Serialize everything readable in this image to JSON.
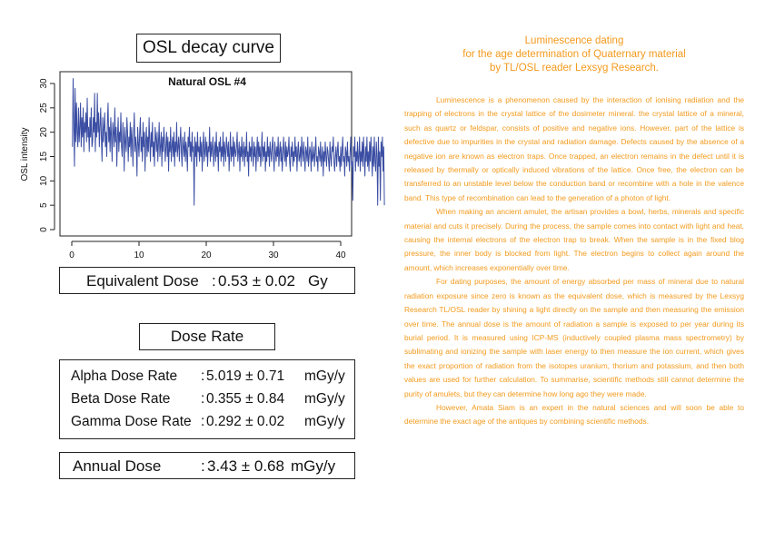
{
  "left": {
    "osl_title": "OSL decay curve",
    "equivalent_dose": {
      "label": "Equivalent Dose",
      "colon": ":",
      "value": "0.53 ± 0.02",
      "unit": "Gy"
    },
    "dose_rate_title": "Dose Rate",
    "dose_rates": [
      {
        "label": "Alpha Dose Rate",
        "colon": ":",
        "value": "5.019 ± 0.71",
        "unit": "mGy/y"
      },
      {
        "label": "Beta Dose Rate",
        "colon": ":",
        "value": "0.355 ± 0.84",
        "unit": "mGy/y"
      },
      {
        "label": "Gamma Dose Rate",
        "colon": ":",
        "value": "0.292 ± 0.02",
        "unit": "mGy/y"
      }
    ],
    "annual_dose": {
      "label": "Annual Dose",
      "colon": ":",
      "value": "3.43 ± 0.68",
      "unit": "mGy/y"
    }
  },
  "chart_data": {
    "type": "line",
    "title": "Natural OSL #4",
    "xlabel": "",
    "ylabel": "OSL intensity",
    "xlim": [
      0,
      40
    ],
    "ylim": [
      0,
      30
    ],
    "xticks": [
      0,
      10,
      20,
      30,
      40
    ],
    "yticks": [
      0,
      5,
      10,
      15,
      20,
      25,
      30
    ],
    "grid": false,
    "series_color": "#3b4ea3",
    "x_step": 0.1,
    "x_start": 0.1,
    "values": [
      17,
      31,
      22,
      13,
      29,
      18,
      26,
      20,
      17,
      25,
      18,
      21,
      26,
      17,
      23,
      19,
      25,
      16,
      22,
      20,
      24,
      18,
      27,
      19,
      21,
      16,
      23,
      19,
      25,
      17,
      18,
      23,
      20,
      28,
      16,
      22,
      19,
      28,
      20,
      24,
      17,
      21,
      25,
      19,
      14,
      23,
      18,
      21,
      24,
      17,
      20,
      15,
      22,
      26,
      18,
      21,
      16,
      23,
      19,
      14,
      22,
      20,
      17,
      25,
      18,
      21,
      13,
      19,
      23,
      16,
      20,
      18,
      24,
      17,
      15,
      22,
      19,
      12,
      21,
      18,
      16,
      23,
      20,
      14,
      19,
      17,
      22,
      15,
      21,
      18,
      13,
      20,
      24,
      16,
      19,
      17,
      11,
      21,
      18,
      15,
      20,
      23,
      16,
      19,
      14,
      22,
      17,
      20,
      12,
      18,
      21,
      15,
      19,
      16,
      23,
      18,
      14,
      20,
      17,
      22,
      15,
      18,
      13,
      21,
      19,
      16,
      20,
      14,
      18,
      22,
      15,
      17,
      20,
      13,
      19,
      16,
      21,
      18,
      14,
      17,
      20,
      15,
      19,
      12,
      18,
      16,
      21,
      14,
      17,
      19,
      15,
      20,
      13,
      18,
      16,
      22,
      15,
      17,
      19,
      14,
      18,
      21,
      16,
      13,
      19,
      17,
      15,
      20,
      14,
      18,
      16,
      12,
      19,
      17,
      21,
      15,
      18,
      14,
      20,
      16,
      17,
      5,
      19,
      15,
      18,
      13,
      20,
      16,
      17,
      14,
      19,
      15,
      18,
      12,
      17,
      20,
      14,
      16,
      19,
      15,
      18,
      13,
      17,
      16,
      21,
      14,
      18,
      15,
      17,
      19,
      13,
      16,
      18,
      14,
      20,
      15,
      17,
      12,
      18,
      16,
      19,
      14,
      17,
      15,
      20,
      13,
      18,
      16,
      14,
      19,
      17,
      15,
      18,
      12,
      16,
      20,
      14,
      17,
      15,
      19,
      13,
      18,
      16,
      15,
      17,
      20,
      14,
      16,
      18,
      12,
      17,
      15,
      19,
      14,
      16,
      18,
      13,
      17,
      15,
      20,
      14,
      16,
      11,
      18,
      15,
      17,
      14,
      19,
      16,
      13,
      18,
      15,
      17,
      12,
      16,
      19,
      14,
      18,
      15,
      17,
      13,
      16,
      20,
      14,
      17,
      15,
      18,
      12,
      16,
      14,
      19,
      15,
      17,
      13,
      18,
      16,
      14,
      17,
      19,
      15,
      12,
      18,
      16,
      14,
      17,
      15,
      19,
      13,
      16,
      18,
      14,
      17,
      12,
      15,
      19,
      16,
      14,
      18,
      13,
      17,
      15,
      16,
      19,
      14,
      12,
      17,
      15,
      18,
      13,
      16,
      14,
      19,
      15,
      17,
      12,
      16,
      18,
      14,
      15,
      17,
      13,
      19,
      16,
      14,
      18,
      15,
      12,
      17,
      16,
      14,
      19,
      13,
      15,
      17,
      16,
      12,
      18,
      14,
      15,
      17,
      13,
      16,
      19,
      14,
      15,
      12,
      17,
      16,
      14,
      18,
      13,
      15,
      17,
      11,
      16,
      14,
      18,
      15,
      13,
      17,
      16,
      14,
      12,
      18,
      15,
      13,
      17,
      16,
      19,
      14,
      12,
      15,
      17,
      13,
      16,
      18,
      14,
      15,
      12,
      17,
      13,
      16,
      19,
      14,
      15,
      11,
      17,
      16,
      13,
      18,
      14,
      15,
      12,
      16,
      19,
      13,
      14,
      6,
      17,
      15,
      19,
      12,
      16,
      14,
      18,
      13,
      15,
      19,
      12,
      16,
      14,
      18,
      13,
      19,
      15,
      11,
      17,
      14,
      19,
      13,
      16,
      12,
      18,
      14,
      19,
      15,
      11,
      17,
      13,
      19,
      14,
      12,
      18,
      15,
      5,
      19,
      13,
      16,
      6,
      18,
      15,
      19,
      12,
      17,
      5
    ]
  },
  "right": {
    "title_lines": [
      "Luminescence dating",
      "for the age determination of Quaternary material",
      "by TL/OSL reader Lexsyg Research."
    ],
    "paragraphs": [
      "Luminescence is a phenomenon caused by the interaction of ionising radiation and the trapping of electrons in the crystal lattice of the dosimeter mineral. the crystal lattice of a mineral, such as quartz or feldspar, consists of positive and negative ions. However, part of the lattice is defective due to impurities in the crystal and radiation damage. Defects caused by the absence of a negative ion are known as electron traps. Once trapped, an electron remains in the defect until it is released by thermally or optically induced vibrations of the lattice. Once free, the electron can be transferred to an unstable level below the conduction band or recombine with a hole in the valence band. This type of recombination can lead to the generation of a photon of light.",
      "When making an ancient amulet, the artisan provides a bowl, herbs, minerals and specific material and cuts it precisely. During the process, the sample comes into contact with light and heat, causing the internal electrons of the electron trap to break. When the sample is in the fixed blog pressure, the inner body is blocked from light. The electron begins to collect again around the amount, which increases exponentially over time.",
      "For dating purposes, the amount of energy absorbed per mass of mineral due to natural radiation exposure since zero is known as the equivalent dose, which is measured by the Lexsyg Research TL/OSL reader by shining a light directly on the sample and then measuring the emission over time. The annual dose is the amount of radiation a sample is exposed to per year during its burial period. It is measured using ICP-MS (inductively coupled plasma mass spectrometry) by sublimating and ionizing the sample with laser energy to then measure the ion current, which gives the exact proportion of radiation from the isotopes uranium, thorium and potassium, and then both values are used for further calculation. To summarise, scientific methods still cannot determine the purity of amulets, but they can determine how long ago they were made.",
      "However, Amata Siam is an expert in the natural sciences and will soon be able to determine the exact age of the antiques by combining scientific methods."
    ]
  }
}
